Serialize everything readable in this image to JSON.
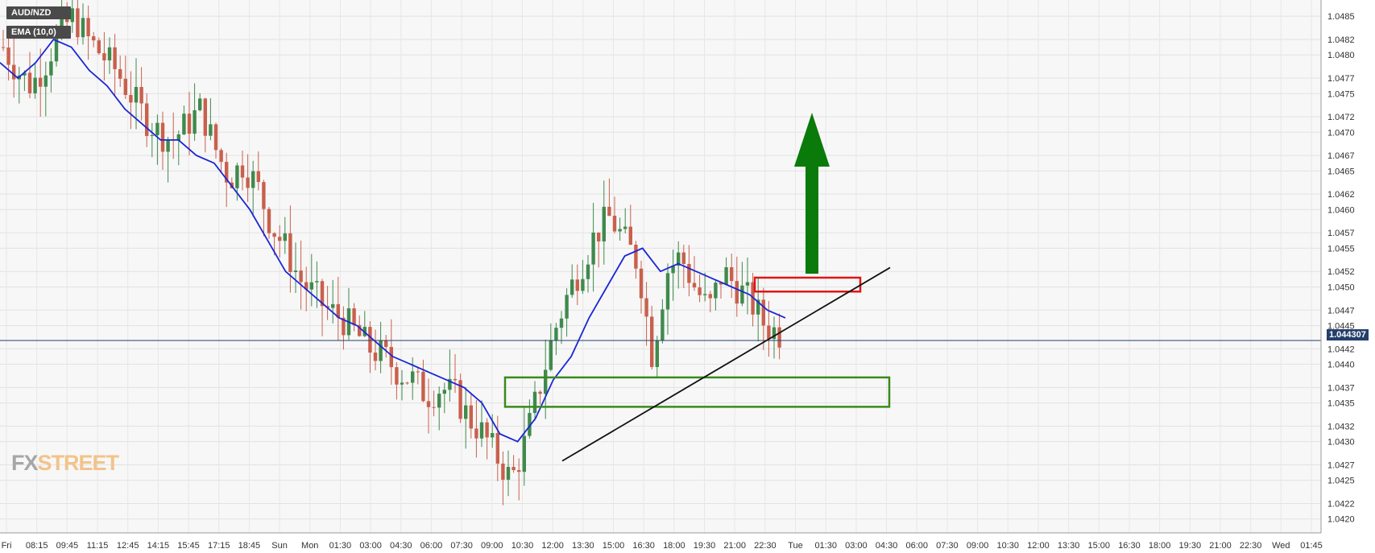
{
  "header": {
    "symbol": "AUD/NZD",
    "indicator": "EMA (10,0)"
  },
  "brand": {
    "part1": "FX",
    "part2": "STREET"
  },
  "current_price_label": "1.044307",
  "colors": {
    "up": "#3f8a4c",
    "down": "#c9604c",
    "ema": "#1a26d6",
    "trendline": "#111111",
    "support_box": "#3a8a1a",
    "resistance_box": "#e01515",
    "arrow": "#0a7a0a",
    "price_line": "#253f6b"
  },
  "chart_data": {
    "type": "candlestick",
    "symbol": "AUD/NZD",
    "timeframe": "15m",
    "ylim": [
      1.04182,
      1.04871
    ],
    "y_ticks": [
      1.042,
      1.0422,
      1.0425,
      1.0427,
      1.043,
      1.0432,
      1.0435,
      1.0437,
      1.044,
      1.0442,
      1.0445,
      1.0447,
      1.045,
      1.0452,
      1.0455,
      1.0457,
      1.046,
      1.0462,
      1.0465,
      1.0467,
      1.047,
      1.0472,
      1.0475,
      1.0477,
      1.048,
      1.0482,
      1.0485
    ],
    "y_tick_labels": [
      "1.0420",
      "1.0422",
      "1.0425",
      "1.0427",
      "1.0430",
      "1.0432",
      "1.0435",
      "1.0437",
      "1.0440",
      "1.0442",
      "1.0445",
      "1.0447",
      "1.0450",
      "1.0452",
      "1.0455",
      "1.0457",
      "1.0460",
      "1.0462",
      "1.0465",
      "1.0467",
      "1.0470",
      "1.0472",
      "1.0475",
      "1.0477",
      "1.0480",
      "1.0482",
      "1.0485"
    ],
    "x_ticks": [
      "Fri",
      "08:15",
      "09:45",
      "11:15",
      "12:45",
      "14:15",
      "15:45",
      "17:15",
      "18:45",
      "Sun",
      "Mon",
      "01:30",
      "03:00",
      "04:30",
      "06:00",
      "07:30",
      "09:00",
      "10:30",
      "12:00",
      "13:30",
      "15:00",
      "16:30",
      "18:00",
      "19:30",
      "21:00",
      "22:30",
      "Tue",
      "01:30",
      "03:00",
      "04:30",
      "06:00",
      "07:30",
      "09:00",
      "10:30",
      "12:00",
      "13:30",
      "15:00",
      "16:30",
      "18:00",
      "19:30",
      "21:00",
      "22:30",
      "Wed",
      "01:45"
    ],
    "current_price": 1.044307,
    "close_path": [
      1.0481,
      1.0478,
      1.0476,
      1.0479,
      1.0483,
      1.0485,
      1.0482,
      1.048,
      1.0478,
      1.0475,
      1.0472,
      1.047,
      1.0469,
      1.0471,
      1.0473,
      1.0468,
      1.0464,
      1.0466,
      1.0463,
      1.0458,
      1.0455,
      1.0451,
      1.0449,
      1.0447,
      1.0446,
      1.0444,
      1.0442,
      1.0441,
      1.0439,
      1.0438,
      1.0436,
      1.0437,
      1.0436,
      1.0433,
      1.0431,
      1.0428,
      1.0425,
      1.043,
      1.0437,
      1.0444,
      1.0449,
      1.0453,
      1.0457,
      1.0459,
      1.0456,
      1.0453,
      1.0441,
      1.0452,
      1.0454,
      1.045,
      1.0447,
      1.0452,
      1.045,
      1.0448,
      1.0445,
      1.0444
    ],
    "ema_path": [
      1.0479,
      1.0477,
      1.0479,
      1.0482,
      1.0481,
      1.0478,
      1.0476,
      1.0473,
      1.0471,
      1.0469,
      1.0469,
      1.0467,
      1.0466,
      1.0463,
      1.046,
      1.0456,
      1.0452,
      1.045,
      1.0448,
      1.0446,
      1.0445,
      1.0443,
      1.0441,
      1.044,
      1.0439,
      1.0438,
      1.0437,
      1.0435,
      1.0431,
      1.043,
      1.0433,
      1.0438,
      1.0441,
      1.0446,
      1.045,
      1.0454,
      1.0455,
      1.0452,
      1.0453,
      1.0452,
      1.0451,
      1.045,
      1.0449,
      1.0447,
      1.0446
    ],
    "annotations": {
      "trendline": {
        "from_price": 1.04275,
        "to_price": 1.04525
      },
      "support_zone": [
        1.04345,
        1.04383
      ],
      "resistance_zone": [
        1.04494,
        1.04512
      ],
      "arrow_direction": "up"
    },
    "grid": true
  }
}
